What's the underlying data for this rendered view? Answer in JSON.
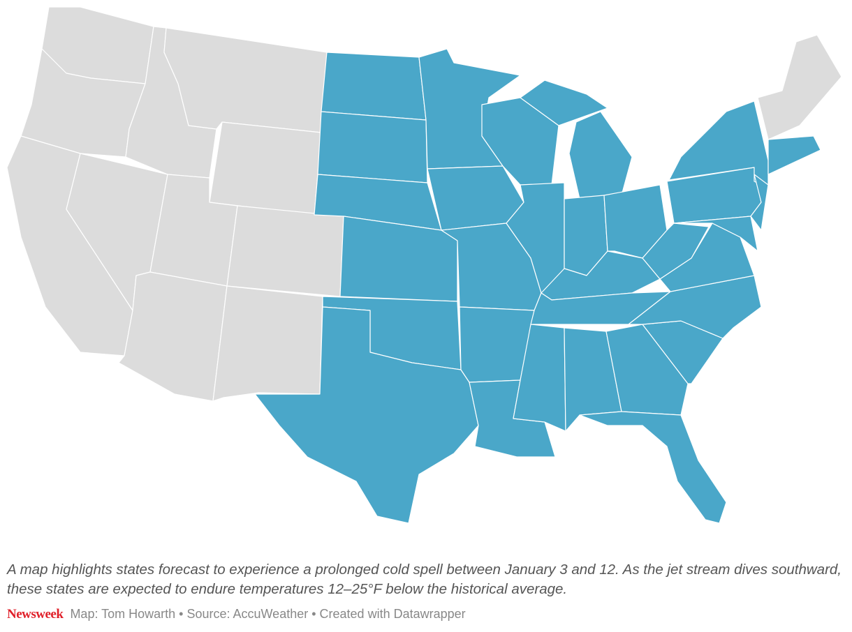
{
  "caption": "A map highlights states forecast to experience a prolonged cold spell between January 3 and 12. As the jet stream dives southward, these states are expected to endure temperatures 12–25°F below the historical average.",
  "footer": {
    "brand": "Newsweek",
    "credits": "Map: Tom Howarth • Source: AccuWeather • Created with Datawrapper"
  }
}
